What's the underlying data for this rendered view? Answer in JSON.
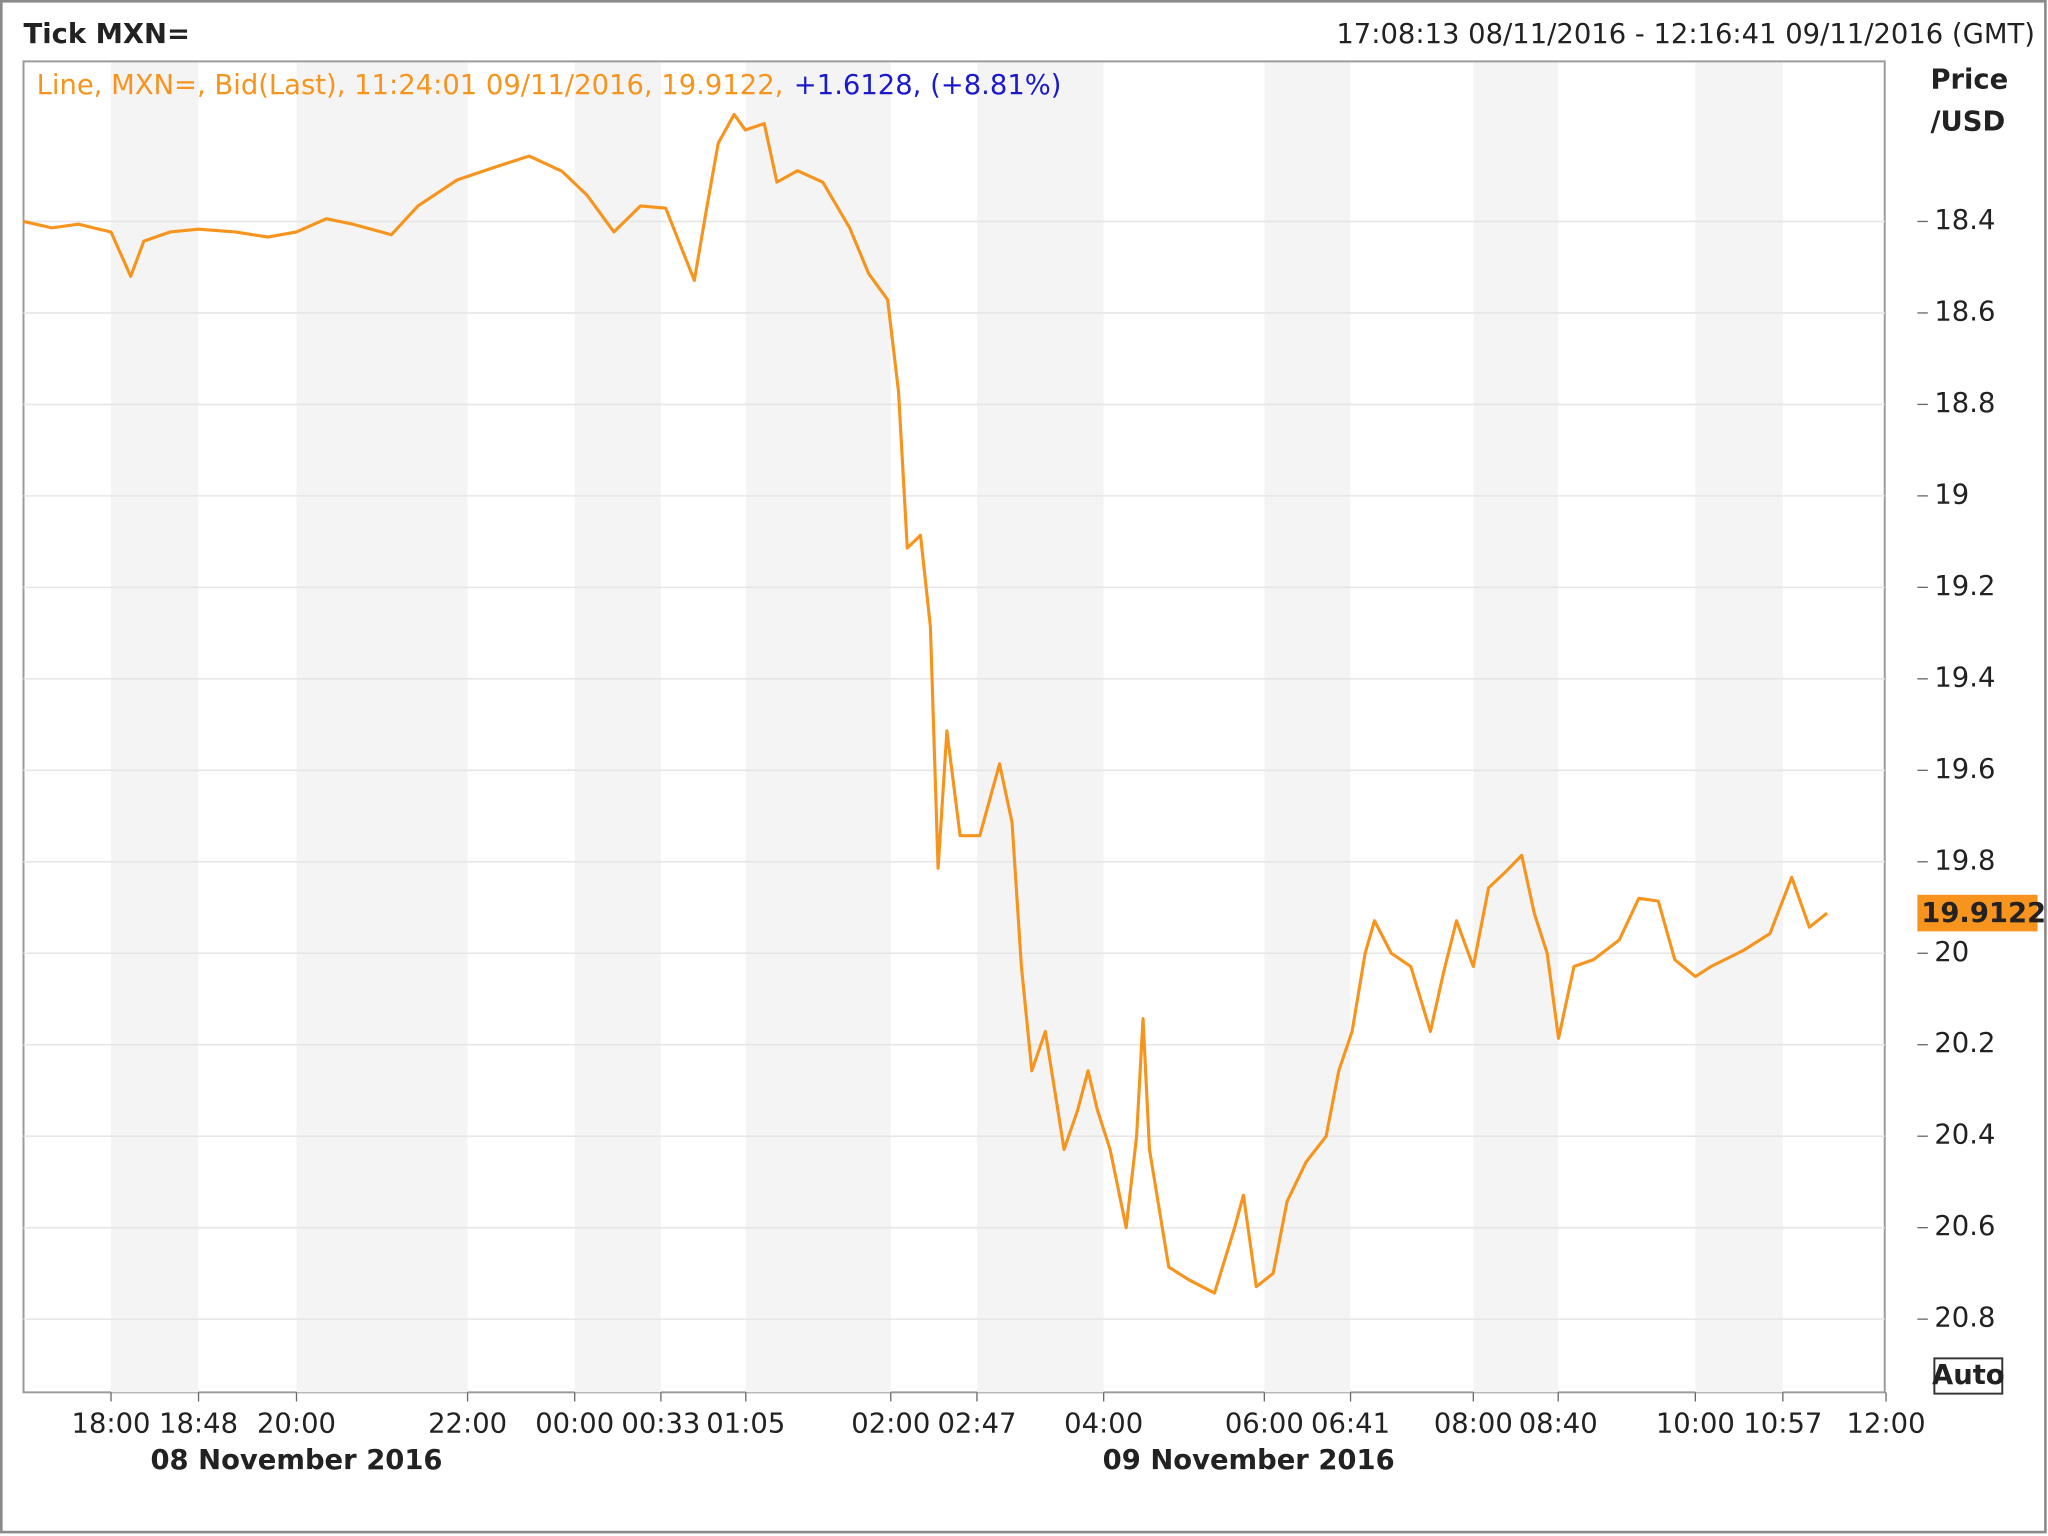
{
  "chart_data": {
    "type": "line",
    "title": "Tick MXN=",
    "range_text": "17:08:13 08/11/2016 - 12:16:41 09/11/2016 (GMT)",
    "legend_text": "Line, MXN=, Bid(Last), 11:24:01 09/11/2016, 19.9122,",
    "change_text": "+1.6128, (+8.81%)",
    "y_label": [
      "Price",
      "/USD"
    ],
    "auto_button": "Auto",
    "date_labels": [
      "08 November 2016",
      "09 November 2016"
    ],
    "last_value": 19.9122,
    "grid": true,
    "xlim": [
      17.2,
      36
    ],
    "xticks": [
      {
        "value": 18,
        "label": "18:00"
      },
      {
        "value": 18.8,
        "label": "18:48"
      },
      {
        "value": 20,
        "label": "20:00"
      },
      {
        "value": 22,
        "label": "22:00"
      },
      {
        "value": 24,
        "label": "00:00"
      },
      {
        "value": 24.55,
        "label": "00:33"
      },
      {
        "value": 25.0833,
        "label": "01:05"
      },
      {
        "value": 26,
        "label": "02:00"
      },
      {
        "value": 26.7833,
        "label": "02:47"
      },
      {
        "value": 28,
        "label": "04:00"
      },
      {
        "value": 30,
        "label": "06:00"
      },
      {
        "value": 30.6833,
        "label": "06:41"
      },
      {
        "value": 32,
        "label": "08:00"
      },
      {
        "value": 32.6667,
        "label": "08:40"
      },
      {
        "value": 34,
        "label": "10:00"
      },
      {
        "value": 34.95,
        "label": "10:57"
      },
      {
        "value": 36,
        "label": "12:00"
      }
    ],
    "ylim": [
      20.96,
      18.05
    ],
    "yticks": [
      18.4,
      18.6,
      18.8,
      19,
      19.2,
      19.4,
      19.6,
      19.8,
      20,
      20.2,
      20.4,
      20.6,
      20.8
    ],
    "series": [
      {
        "color": "#f7941d",
        "x": [
          17.2,
          17.46,
          17.7,
          18.0,
          18.18,
          18.3,
          18.54,
          18.8,
          19.25,
          19.65,
          20.0,
          20.35,
          20.66,
          21.11,
          21.42,
          21.88,
          22.54,
          23.15,
          23.76,
          24.08,
          24.25,
          24.42,
          24.58,
          24.76,
          24.83,
          24.91,
          25.01,
          25.08,
          25.2,
          25.28,
          25.41,
          25.57,
          25.74,
          25.86,
          25.98,
          26.07,
          26.15,
          26.27,
          26.36,
          26.43,
          26.51,
          26.63,
          26.81,
          27.0,
          27.12,
          27.21,
          27.31,
          27.44,
          27.62,
          27.75,
          27.85,
          27.94,
          28.08,
          28.28,
          28.41,
          28.49,
          28.57,
          28.81,
          29.06,
          29.38,
          29.63,
          29.74,
          29.9,
          30.07,
          30.18,
          30.33,
          30.49,
          30.59,
          30.7,
          30.84,
          30.94,
          31.12,
          31.33,
          31.54,
          31.68,
          31.82,
          32.0,
          32.12,
          32.25,
          32.38,
          32.48,
          32.58,
          32.67,
          32.82,
          33.01,
          33.26,
          33.45,
          33.64,
          33.8,
          34.0,
          34.17,
          34.52,
          34.81,
          35.04,
          35.22,
          35.4
        ],
        "values": [
          18.4,
          18.414,
          18.406,
          18.423,
          18.52,
          18.443,
          18.423,
          18.417,
          18.423,
          18.434,
          18.423,
          18.394,
          18.406,
          18.429,
          18.366,
          18.309,
          18.28,
          18.257,
          18.29,
          18.343,
          18.423,
          18.366,
          18.371,
          18.529,
          18.386,
          18.229,
          18.166,
          18.2,
          18.186,
          18.314,
          18.289,
          18.314,
          18.414,
          18.514,
          18.571,
          18.771,
          19.114,
          19.086,
          19.286,
          19.814,
          19.514,
          19.743,
          19.743,
          19.586,
          19.714,
          20.029,
          20.257,
          20.171,
          20.429,
          20.343,
          20.257,
          20.343,
          20.429,
          20.6,
          20.4,
          20.143,
          20.429,
          20.686,
          20.714,
          20.743,
          20.6,
          20.529,
          20.729,
          20.7,
          20.543,
          20.457,
          20.4,
          20.257,
          20.171,
          20.0,
          19.929,
          20.0,
          20.029,
          20.171,
          20.043,
          19.929,
          20.029,
          19.857,
          19.823,
          19.786,
          19.914,
          20.0,
          20.186,
          20.029,
          20.014,
          19.971,
          19.88,
          19.886,
          20.014,
          20.051,
          20.029,
          19.994,
          19.957,
          19.834,
          19.943,
          19.9122
        ]
      }
    ]
  }
}
